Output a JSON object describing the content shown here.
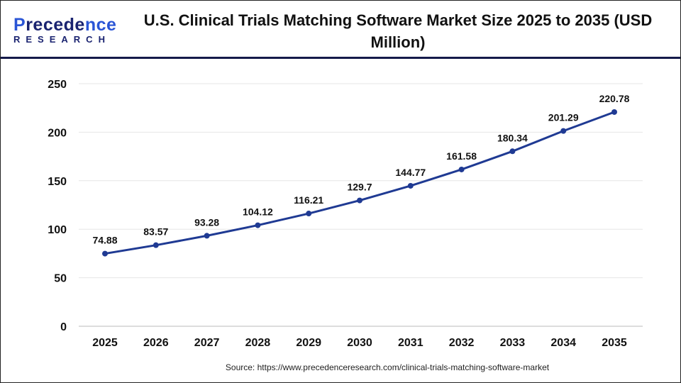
{
  "logo": {
    "line1_a": "P",
    "line1_b": "recede",
    "line1_c": "nce",
    "line2": "RESEARCH"
  },
  "header": {
    "title": "U.S. Clinical Trials Matching Software Market Size 2025 to 2035  (USD Million)"
  },
  "source": "Source: https://www.precedenceresearch.com/clinical-trials-matching-software-market",
  "colors": {
    "line": "#1f3a93",
    "header_border": "#141a4a",
    "grid": "#e6e6e6"
  },
  "chart_data": {
    "type": "line",
    "title": "U.S. Clinical Trials Matching Software Market Size 2025 to 2035  (USD Million)",
    "categories": [
      "2025",
      "2026",
      "2027",
      "2028",
      "2029",
      "2030",
      "2031",
      "2032",
      "2033",
      "2034",
      "2035"
    ],
    "values": [
      74.88,
      83.57,
      93.28,
      104.12,
      116.21,
      129.7,
      144.77,
      161.58,
      180.34,
      201.29,
      220.78
    ],
    "data_labels": [
      "74.88",
      "83.57",
      "93.28",
      "104.12",
      "116.21",
      "129.7",
      "144.77",
      "161.58",
      "180.34",
      "201.29",
      "220.78"
    ],
    "yticks": [
      "0",
      "50",
      "100",
      "150",
      "200",
      "250"
    ],
    "ylim": [
      0,
      250
    ],
    "grid": true,
    "legend": "none"
  }
}
